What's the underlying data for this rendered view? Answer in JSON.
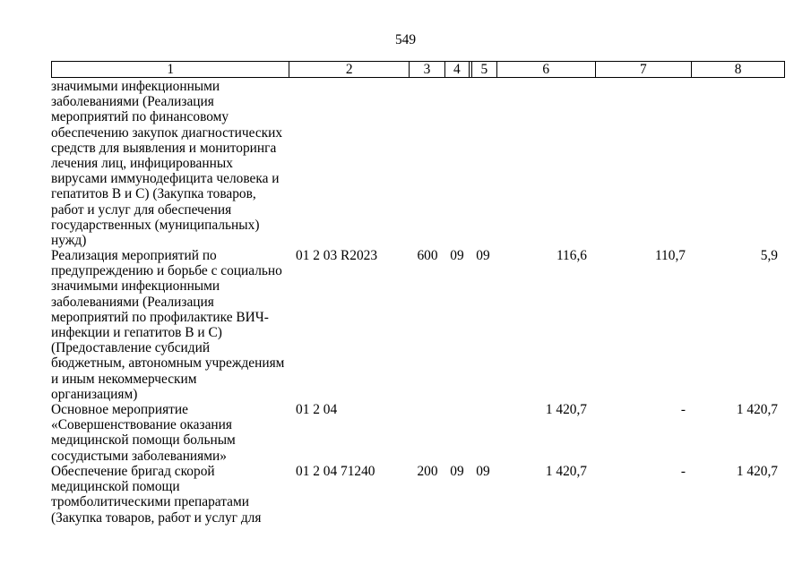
{
  "page_number": "549",
  "table": {
    "headers": [
      "1",
      "2",
      "3",
      "4",
      "5",
      "6",
      "7",
      "8"
    ],
    "rows": [
      {
        "name": "значимыми инфекционными\nзаболеваниями (Реализация\nмероприятий по финансовому\nобеспечению закупок диагностических\nсредств для выявления и мониторинга\nлечения лиц, инфицированных\nвирусами иммунодефицита человека и\nгепатитов B и C) (Закупка товаров,\nработ и услуг для обеспечения\nгосударственных (муниципальных)\nнужд)",
        "code": "",
        "expense_type": "",
        "section": "",
        "subsection": "",
        "amount1": "",
        "amount2": "",
        "amount3": ""
      },
      {
        "name": "Реализация мероприятий по\nпредупреждению и борьбе с социально\nзначимыми инфекционными\nзаболеваниями (Реализация\nмероприятий по профилактике ВИЧ-\nинфекции и гепатитов B и C)\n(Предоставление субсидий\nбюджетным, автономным учреждениям\nи иным некоммерческим\nорганизациям)",
        "code": "01 2 03 R2023",
        "expense_type": "600",
        "section": "09",
        "subsection": "09",
        "amount1": "116,6",
        "amount2": "110,7",
        "amount3": "5,9"
      },
      {
        "name": "Основное мероприятие\n«Совершенствование оказания\nмедицинской помощи больным\nсосудистыми заболеваниями»",
        "code": "01 2 04",
        "expense_type": "",
        "section": "",
        "subsection": "",
        "amount1": "1 420,7",
        "amount2": "-",
        "amount3": "1 420,7"
      },
      {
        "name": "Обеспечение бригад скорой\nмедицинской помощи\nтромболитическими препаратами\n(Закупка товаров, работ и услуг для",
        "code": "01 2 04 71240",
        "expense_type": "200",
        "section": "09",
        "subsection": "09",
        "amount1": "1 420,7",
        "amount2": "-",
        "amount3": "1 420,7"
      }
    ]
  }
}
